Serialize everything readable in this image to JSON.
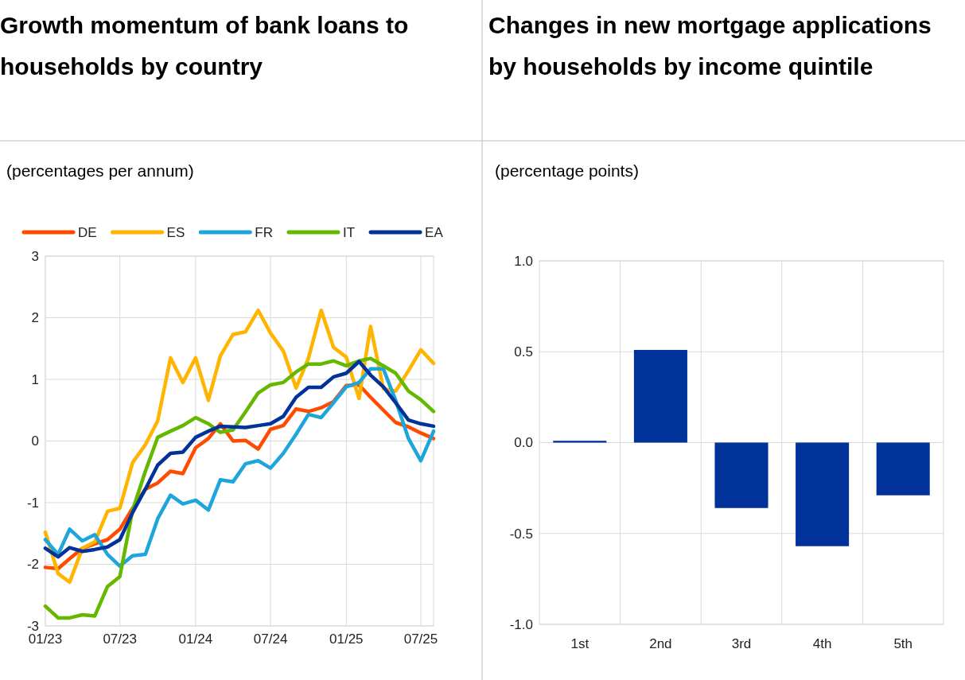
{
  "chart_data": [
    {
      "type": "line",
      "title": "Growth momentum of bank loans to households by country",
      "subtitle": "(percentages per annum)",
      "legend": "top",
      "grid": true,
      "x": [
        "2023-01",
        "2023-02",
        "2023-03",
        "2023-04",
        "2023-05",
        "2023-06",
        "2023-07",
        "2023-08",
        "2023-09",
        "2023-10",
        "2023-11",
        "2023-12",
        "2024-01",
        "2024-02",
        "2024-03",
        "2024-04",
        "2024-05",
        "2024-06",
        "2024-07",
        "2024-08",
        "2024-09",
        "2024-10",
        "2024-11",
        "2024-12",
        "2025-01",
        "2025-02",
        "2025-03",
        "2025-04",
        "2025-05",
        "2025-06",
        "2025-07",
        "2025-08"
      ],
      "xlim": [
        "2023-01",
        "2025-08"
      ],
      "xticks": [
        {
          "value": "2023-01",
          "label": "01/23"
        },
        {
          "value": "2023-07",
          "label": "07/23"
        },
        {
          "value": "2024-01",
          "label": "01/24"
        },
        {
          "value": "2024-07",
          "label": "07/24"
        },
        {
          "value": "2025-01",
          "label": "01/25"
        },
        {
          "value": "2025-07",
          "label": "07/25"
        }
      ],
      "ylim": [
        -3,
        3
      ],
      "yticks": [
        -3,
        -2,
        -1,
        0,
        1,
        2,
        3
      ],
      "series": [
        {
          "name": "DE",
          "color": "#ff4b00",
          "values": [
            -2.05,
            -2.07,
            -1.91,
            -1.74,
            -1.67,
            -1.6,
            -1.43,
            -1.09,
            -0.78,
            -0.68,
            -0.49,
            -0.53,
            -0.11,
            0.04,
            0.28,
            0.0,
            0.01,
            -0.13,
            0.19,
            0.25,
            0.52,
            0.48,
            0.54,
            0.64,
            0.9,
            0.91,
            0.71,
            0.5,
            0.3,
            0.23,
            0.13,
            0.04
          ]
        },
        {
          "name": "ES",
          "color": "#ffb400",
          "values": [
            -1.48,
            -2.15,
            -2.29,
            -1.74,
            -1.64,
            -1.14,
            -1.09,
            -0.35,
            -0.06,
            0.33,
            1.35,
            0.95,
            1.35,
            0.66,
            1.38,
            1.73,
            1.77,
            2.12,
            1.75,
            1.46,
            0.86,
            1.34,
            2.12,
            1.52,
            1.36,
            0.69,
            1.86,
            0.85,
            0.81,
            1.14,
            1.48,
            1.26
          ]
        },
        {
          "name": "FR",
          "color": "#1ea5dc",
          "values": [
            -1.6,
            -1.84,
            -1.43,
            -1.62,
            -1.52,
            -1.84,
            -2.03,
            -1.86,
            -1.84,
            -1.26,
            -0.88,
            -1.02,
            -0.96,
            -1.12,
            -0.63,
            -0.66,
            -0.37,
            -0.32,
            -0.44,
            -0.2,
            0.11,
            0.43,
            0.38,
            0.62,
            0.88,
            0.95,
            1.17,
            1.17,
            0.66,
            0.04,
            -0.32,
            0.16
          ]
        },
        {
          "name": "IT",
          "color": "#65b800",
          "values": [
            -2.68,
            -2.87,
            -2.87,
            -2.82,
            -2.84,
            -2.36,
            -2.2,
            -1.12,
            -0.49,
            0.06,
            0.16,
            0.25,
            0.38,
            0.28,
            0.14,
            0.18,
            0.47,
            0.78,
            0.91,
            0.95,
            1.12,
            1.25,
            1.25,
            1.3,
            1.22,
            1.3,
            1.34,
            1.22,
            1.1,
            0.81,
            0.67,
            0.48
          ]
        },
        {
          "name": "EA",
          "color": "#003299",
          "values": [
            -1.74,
            -1.88,
            -1.73,
            -1.79,
            -1.76,
            -1.72,
            -1.6,
            -1.16,
            -0.78,
            -0.39,
            -0.2,
            -0.18,
            0.06,
            0.16,
            0.24,
            0.23,
            0.22,
            0.25,
            0.28,
            0.4,
            0.71,
            0.87,
            0.87,
            1.04,
            1.1,
            1.29,
            1.07,
            0.88,
            0.62,
            0.34,
            0.28,
            0.24
          ]
        }
      ]
    },
    {
      "type": "bar",
      "title": "Changes in new mortgage applications by households by income quintile",
      "subtitle": "(percentage points)",
      "grid": true,
      "categories": [
        "1st",
        "2nd",
        "3rd",
        "4th",
        "5th"
      ],
      "values": [
        0.01,
        0.51,
        -0.36,
        -0.57,
        -0.29
      ],
      "color": "#003299",
      "ylim": [
        -1,
        1
      ],
      "yticks": [
        {
          "value": -1,
          "label": "-1.0"
        },
        -0.5,
        {
          "value": 0,
          "label": "0.0"
        },
        0.5,
        {
          "value": 1,
          "label": "1.0"
        }
      ]
    }
  ]
}
